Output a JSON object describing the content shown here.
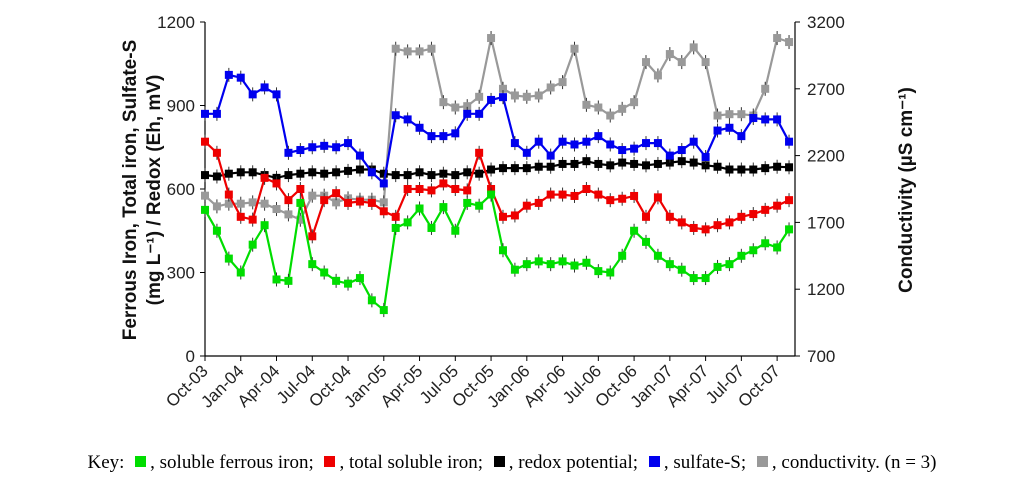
{
  "chart_data": {
    "type": "line",
    "x_labels": [
      "Oct-03",
      "Jan-04",
      "Apr-04",
      "Jul-04",
      "Oct-04",
      "Jan-05",
      "Apr-05",
      "Jul-05",
      "Oct-05",
      "Jan-06",
      "Apr-06",
      "Jul-06",
      "Oct-06",
      "Jan-07",
      "Apr-07",
      "Jul-07",
      "Oct-07"
    ],
    "x_range": [
      0,
      49.5
    ],
    "left_axis": {
      "label_line1": "Ferrous Iron, Total iron, Sulfate-S",
      "label_line2": "(mg L⁻¹) / Redox (Eh, mV)",
      "ylim": [
        0,
        1200
      ],
      "ticks": [
        "0",
        "300",
        "600",
        "900",
        "1200"
      ]
    },
    "right_axis": {
      "label": "Conductivity (µS cm⁻¹)",
      "ylim": [
        700,
        3200
      ],
      "ticks": [
        "700",
        "1200",
        "1700",
        "2200",
        "2700",
        "3200"
      ]
    },
    "series": [
      {
        "name": "soluble ferrous iron",
        "color": "#00dd00",
        "axis": "left",
        "x": [
          0,
          1,
          2,
          3,
          4,
          5,
          6,
          7,
          8,
          9,
          10,
          11,
          12,
          13,
          14,
          15,
          16,
          17,
          18,
          19,
          20,
          21,
          22,
          23,
          24,
          25,
          26,
          27,
          28,
          29,
          30,
          31,
          32,
          33,
          34,
          35,
          36,
          37,
          38,
          39,
          40,
          41,
          42,
          43,
          44,
          45,
          46,
          47,
          48,
          49
        ],
        "values": [
          525,
          450,
          350,
          300,
          400,
          470,
          275,
          270,
          550,
          330,
          300,
          270,
          260,
          280,
          200,
          165,
          460,
          480,
          530,
          460,
          535,
          450,
          550,
          540,
          580,
          380,
          310,
          330,
          340,
          330,
          340,
          325,
          335,
          305,
          300,
          360,
          450,
          410,
          360,
          330,
          310,
          280,
          280,
          320,
          330,
          360,
          380,
          405,
          390,
          455
        ]
      },
      {
        "name": "total soluble iron",
        "color": "#ee0000",
        "axis": "left",
        "x": [
          0,
          1,
          2,
          3,
          4,
          5,
          6,
          7,
          8,
          9,
          10,
          11,
          12,
          13,
          14,
          15,
          16,
          17,
          18,
          19,
          20,
          21,
          22,
          23,
          24,
          25,
          26,
          27,
          28,
          29,
          30,
          31,
          32,
          33,
          34,
          35,
          36,
          37,
          38,
          39,
          40,
          41,
          42,
          43,
          44,
          45,
          46,
          47,
          48,
          49
        ],
        "values": [
          770,
          730,
          580,
          500,
          490,
          640,
          620,
          560,
          600,
          430,
          560,
          585,
          550,
          555,
          550,
          520,
          500,
          600,
          600,
          595,
          620,
          600,
          595,
          730,
          600,
          500,
          505,
          540,
          550,
          580,
          580,
          575,
          600,
          580,
          560,
          565,
          575,
          500,
          570,
          500,
          480,
          460,
          455,
          470,
          480,
          500,
          510,
          525,
          540,
          560
        ]
      },
      {
        "name": "redox potential",
        "color": "#000000",
        "axis": "left",
        "x": [
          0,
          1,
          2,
          3,
          4,
          5,
          6,
          7,
          8,
          9,
          10,
          11,
          12,
          13,
          14,
          15,
          16,
          17,
          18,
          19,
          20,
          21,
          22,
          23,
          24,
          25,
          26,
          27,
          28,
          29,
          30,
          31,
          32,
          33,
          34,
          35,
          36,
          37,
          38,
          39,
          40,
          41,
          42,
          43,
          44,
          45,
          46,
          47,
          48,
          49
        ],
        "values": [
          650,
          645,
          655,
          660,
          660,
          650,
          640,
          650,
          655,
          660,
          655,
          660,
          665,
          670,
          670,
          655,
          650,
          650,
          660,
          650,
          655,
          650,
          660,
          655,
          670,
          675,
          675,
          675,
          680,
          680,
          690,
          690,
          700,
          690,
          685,
          695,
          690,
          685,
          690,
          695,
          700,
          695,
          685,
          680,
          670,
          670,
          670,
          675,
          680,
          678
        ]
      },
      {
        "name": "sulfate-S",
        "color": "#0000ee",
        "axis": "left",
        "x": [
          0,
          1,
          2,
          3,
          4,
          5,
          6,
          7,
          8,
          9,
          10,
          11,
          12,
          13,
          14,
          15,
          16,
          17,
          18,
          19,
          20,
          21,
          22,
          23,
          24,
          25,
          26,
          27,
          28,
          29,
          30,
          31,
          32,
          33,
          34,
          35,
          36,
          37,
          38,
          39,
          40,
          41,
          42,
          43,
          44,
          45,
          46,
          47,
          48,
          49
        ],
        "values": [
          870,
          870,
          1010,
          1000,
          940,
          965,
          940,
          730,
          740,
          750,
          755,
          750,
          765,
          720,
          660,
          620,
          865,
          850,
          820,
          790,
          790,
          800,
          870,
          870,
          920,
          930,
          765,
          730,
          770,
          720,
          770,
          760,
          770,
          790,
          760,
          740,
          745,
          765,
          765,
          720,
          740,
          770,
          715,
          810,
          820,
          790,
          855,
          850,
          850,
          770
        ]
      },
      {
        "name": "conductivity",
        "color": "#999999",
        "axis": "right",
        "x": [
          0,
          1,
          2,
          3,
          4,
          5,
          6,
          7,
          8,
          9,
          10,
          11,
          12,
          13,
          14,
          15,
          16,
          17,
          18,
          19,
          20,
          21,
          22,
          23,
          24,
          25,
          26,
          27,
          28,
          29,
          30,
          31,
          32,
          33,
          34,
          35,
          36,
          37,
          38,
          39,
          40,
          41,
          42,
          43,
          44,
          45,
          46,
          47,
          48,
          49
        ],
        "values": [
          1900,
          1820,
          1840,
          1840,
          1850,
          1840,
          1800,
          1760,
          1720,
          1900,
          1900,
          1850,
          1880,
          1870,
          1870,
          1850,
          3000,
          2980,
          2980,
          3000,
          2600,
          2560,
          2570,
          2640,
          3080,
          2700,
          2650,
          2640,
          2650,
          2710,
          2750,
          3000,
          2580,
          2560,
          2500,
          2550,
          2600,
          2900,
          2800,
          2960,
          2900,
          3010,
          2900,
          2500,
          2510,
          2510,
          2500,
          2700,
          3080,
          3050
        ]
      }
    ]
  },
  "key": {
    "prefix": "Key:",
    "items": [
      {
        "color": "#00dd00",
        "label": ", soluble ferrous iron;"
      },
      {
        "color": "#ee0000",
        "label": ", total soluble iron;"
      },
      {
        "color": "#000000",
        "label": ", redox potential;"
      },
      {
        "color": "#0000ee",
        "label": ", sulfate-S;"
      },
      {
        "color": "#999999",
        "label": ", conductivity. (n = 3)"
      }
    ]
  }
}
